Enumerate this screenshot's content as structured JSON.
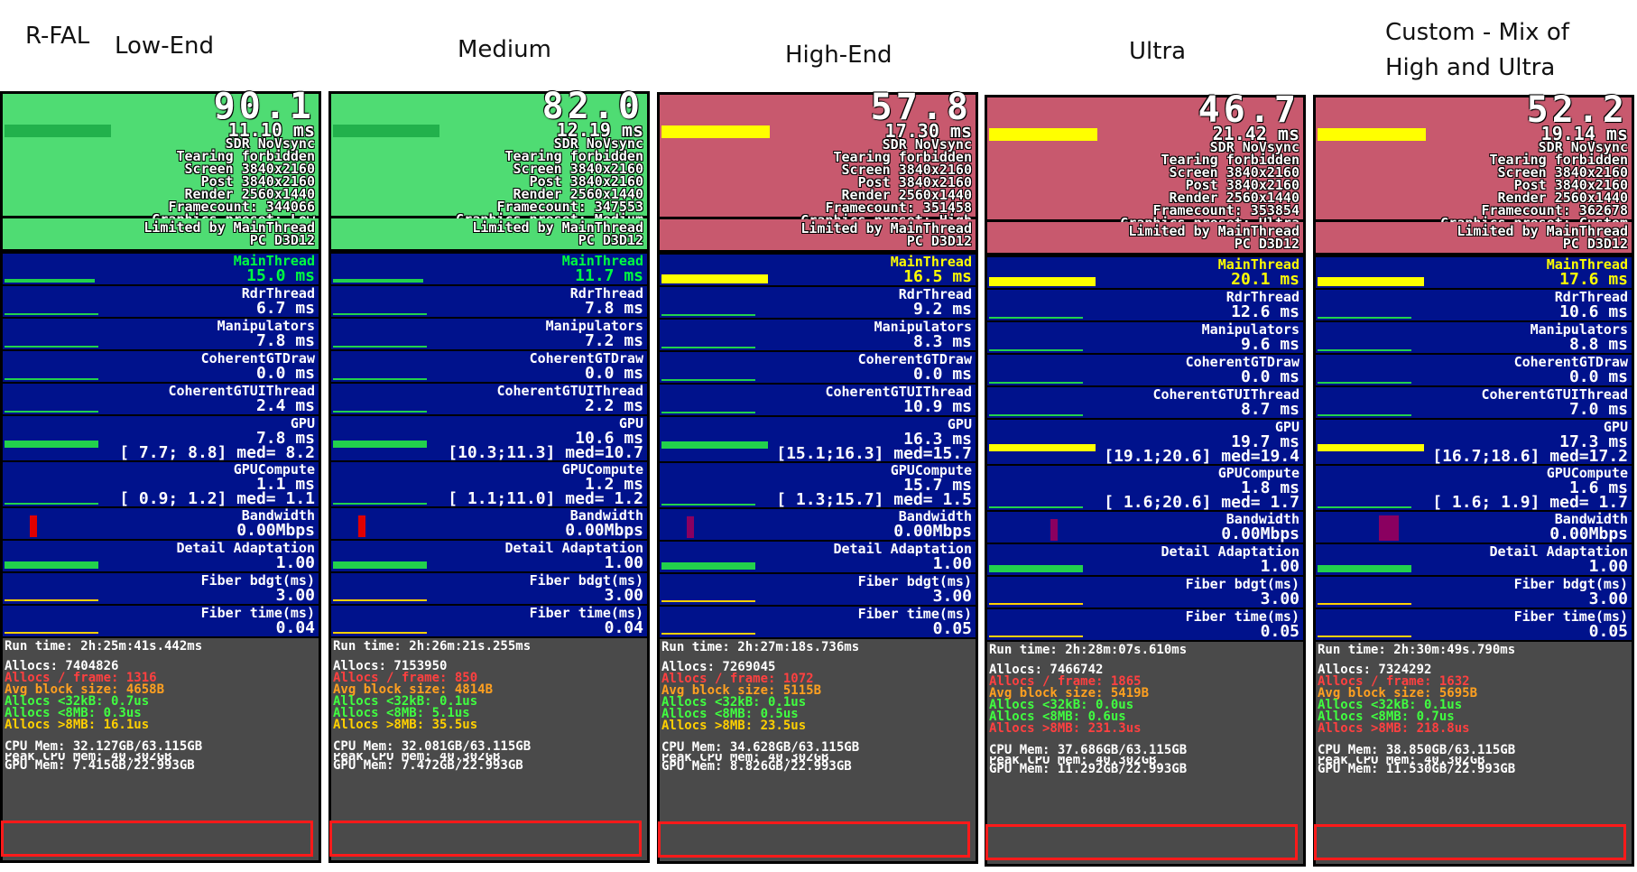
{
  "headers": {
    "rfal": "R-FAL",
    "c0": "Low-End",
    "c1": "Medium",
    "c2": "High-End",
    "c3": "Ultra",
    "c4_line1": "Custom - Mix of",
    "c4_line2": "High and Ultra"
  },
  "colors": {
    "green_top": "#4fdc73",
    "red_top": "#c8596e",
    "panel_blue": "#00128c",
    "mem_gray": "#4a4a4a",
    "highlight_red": "#ff1a1a"
  },
  "columns": [
    {
      "fps": "90.1",
      "ms": "11.10 ms",
      "sync": "SDR NoVsync",
      "tearing": "Tearing forbidden",
      "screen": "Screen 3840x2160",
      "post": "Post 3840x2160",
      "render": "Render 2560x1440",
      "framecount": "Framecount: 344066",
      "preset": "Graphics preset: Low",
      "limited": "Limited by MainThread",
      "pc": "PC D3D12",
      "main_label": "MainThread",
      "main_val": "15.0 ms",
      "rdr_label": "RdrThread",
      "rdr_val": "6.7 ms",
      "manip_label": "Manipulators",
      "manip_val": "7.8 ms",
      "cgtdraw_label": "CoherentGTDraw",
      "cgtdraw_val": "0.0 ms",
      "cgtui_label": "CoherentGTUIThread",
      "cgtui_val": "2.4 ms",
      "gpu_label": "GPU",
      "gpu_val": "7.8 ms",
      "gpu_range": "[ 7.7; 8.8] med= 8.2",
      "gpuc_label": "GPUCompute",
      "gpuc_val": "1.1 ms",
      "gpuc_range": "[ 0.9; 1.2] med= 1.1",
      "bw_label": "Bandwidth",
      "bw_val": "0.00Mbps",
      "da_label": "Detail Adaptation",
      "da_val": "1.00",
      "fb_label": "Fiber bdgt(ms)",
      "fb_val": "3.00",
      "ft_label": "Fiber time(ms)",
      "ft_val": "0.04",
      "runtime": "Run time: 2h:25m:41s.442ms",
      "allocs": "Allocs: 7404826",
      "allocs_frame": "Allocs / frame: 1316",
      "avg_block": "Avg block size: 4658B",
      "allocs_32k": "Allocs <32kB: 0.7us",
      "allocs_8mb": "Allocs <8MB: 0.3us",
      "allocs_gt8mb": "Allocs >8MB: 16.1us",
      "cpu_mem": "CPU Mem: 32.127GB/63.115GB",
      "peak_cpu": "Peak CPU Mem: 40.302GB",
      "gpu_mem": "GPU Mem: 7.415GB/22.993GB"
    },
    {
      "fps": "82.0",
      "ms": "12.19 ms",
      "sync": "SDR NoVsync",
      "tearing": "Tearing forbidden",
      "screen": "Screen 3840x2160",
      "post": "Post 3840x2160",
      "render": "Render 2560x1440",
      "framecount": "Framecount: 347553",
      "preset": "Graphics preset: Medium",
      "limited": "Limited by MainThread",
      "pc": "PC D3D12",
      "main_label": "MainThread",
      "main_val": "11.7 ms",
      "rdr_label": "RdrThread",
      "rdr_val": "7.8 ms",
      "manip_label": "Manipulators",
      "manip_val": "7.2 ms",
      "cgtdraw_label": "CoherentGTDraw",
      "cgtdraw_val": "0.0 ms",
      "cgtui_label": "CoherentGTUIThread",
      "cgtui_val": "2.2 ms",
      "gpu_label": "GPU",
      "gpu_val": "10.6 ms",
      "gpu_range": "[10.3;11.3] med=10.7",
      "gpuc_label": "GPUCompute",
      "gpuc_val": "1.2 ms",
      "gpuc_range": "[ 1.1;11.0] med= 1.2",
      "bw_label": "Bandwidth",
      "bw_val": "0.00Mbps",
      "da_label": "Detail Adaptation",
      "da_val": "1.00",
      "fb_label": "Fiber bdgt(ms)",
      "fb_val": "3.00",
      "ft_label": "Fiber time(ms)",
      "ft_val": "0.04",
      "runtime": "Run time: 2h:26m:21s.255ms",
      "allocs": "Allocs: 7153950",
      "allocs_frame": "Allocs / frame: 850",
      "avg_block": "Avg block size: 4814B",
      "allocs_32k": "Allocs <32kB: 0.1us",
      "allocs_8mb": "Allocs <8MB: 5.1us",
      "allocs_gt8mb": "Allocs >8MB: 35.5us",
      "cpu_mem": "CPU Mem: 32.081GB/63.115GB",
      "peak_cpu": "Peak CPU Mem: 40.302GB",
      "gpu_mem": "GPU Mem: 7.472GB/22.993GB"
    },
    {
      "fps": "57.8",
      "ms": "17.30 ms",
      "sync": "SDR NoVsync",
      "tearing": "Tearing forbidden",
      "screen": "Screen 3840x2160",
      "post": "Post 3840x2160",
      "render": "Render 2560x1440",
      "framecount": "Framecount: 351458",
      "preset": "Graphics preset: High",
      "limited": "Limited by MainThread",
      "pc": "PC D3D12",
      "main_label": "MainThread",
      "main_val": "16.5 ms",
      "rdr_label": "RdrThread",
      "rdr_val": "9.2 ms",
      "manip_label": "Manipulators",
      "manip_val": "8.3 ms",
      "cgtdraw_label": "CoherentGTDraw",
      "cgtdraw_val": "0.0 ms",
      "cgtui_label": "CoherentGTUIThread",
      "cgtui_val": "10.9 ms",
      "gpu_label": "GPU",
      "gpu_val": "16.3 ms",
      "gpu_range": "[15.1;16.3] med=15.7",
      "gpuc_label": "GPUCompute",
      "gpuc_val": "15.7 ms",
      "gpuc_range": "[ 1.3;15.7] med= 1.5",
      "bw_label": "Bandwidth",
      "bw_val": "0.00Mbps",
      "da_label": "Detail Adaptation",
      "da_val": "1.00",
      "fb_label": "Fiber bdgt(ms)",
      "fb_val": "3.00",
      "ft_label": "Fiber time(ms)",
      "ft_val": "0.05",
      "runtime": "Run time: 2h:27m:18s.736ms",
      "allocs": "Allocs: 7269045",
      "allocs_frame": "Allocs / frame: 1072",
      "avg_block": "Avg block size: 5115B",
      "allocs_32k": "Allocs <32kB: 0.1us",
      "allocs_8mb": "Allocs <8MB: 0.5us",
      "allocs_gt8mb": "Allocs >8MB: 23.5us",
      "cpu_mem": "CPU Mem: 34.628GB/63.115GB",
      "peak_cpu": "Peak CPU Mem: 40.302GB",
      "gpu_mem": "GPU Mem: 8.826GB/22.993GB"
    },
    {
      "fps": "46.7",
      "ms": "21.42 ms",
      "sync": "SDR NoVsync",
      "tearing": "Tearing forbidden",
      "screen": "Screen 3840x2160",
      "post": "Post 3840x2160",
      "render": "Render 2560x1440",
      "framecount": "Framecount: 353854",
      "preset": "Graphics preset: Ultra",
      "limited": "Limited by MainThread",
      "pc": "PC D3D12",
      "main_label": "MainThread",
      "main_val": "20.1 ms",
      "rdr_label": "RdrThread",
      "rdr_val": "12.6 ms",
      "manip_label": "Manipulators",
      "manip_val": "9.6 ms",
      "cgtdraw_label": "CoherentGTDraw",
      "cgtdraw_val": "0.0 ms",
      "cgtui_label": "CoherentGTUIThread",
      "cgtui_val": "8.7 ms",
      "gpu_label": "GPU",
      "gpu_val": "19.7 ms",
      "gpu_range": "[19.1;20.6] med=19.4",
      "gpuc_label": "GPUCompute",
      "gpuc_val": "1.8 ms",
      "gpuc_range": "[ 1.6;20.6] med= 1.7",
      "bw_label": "Bandwidth",
      "bw_val": "0.00Mbps",
      "da_label": "Detail Adaptation",
      "da_val": "1.00",
      "fb_label": "Fiber bdgt(ms)",
      "fb_val": "3.00",
      "ft_label": "Fiber time(ms)",
      "ft_val": "0.05",
      "runtime": "Run time: 2h:28m:07s.610ms",
      "allocs": "Allocs: 7466742",
      "allocs_frame": "Allocs / frame: 1865",
      "avg_block": "Avg block size: 5419B",
      "allocs_32k": "Allocs <32kB: 0.0us",
      "allocs_8mb": "Allocs <8MB: 0.6us",
      "allocs_gt8mb": "Allocs >8MB: 231.3us",
      "cpu_mem": "CPU Mem: 37.686GB/63.115GB",
      "peak_cpu": "Peak CPU Mem: 40.302GB",
      "gpu_mem": "GPU Mem: 11.292GB/22.993GB"
    },
    {
      "fps": "52.2",
      "ms": "19.14 ms",
      "sync": "SDR NoVsync",
      "tearing": "Tearing forbidden",
      "screen": "Screen 3840x2160",
      "post": "Post 3840x2160",
      "render": "Render 2560x1440",
      "framecount": "Framecount: 362678",
      "preset": "Graphics preset: Custom",
      "limited": "Limited by MainThread",
      "pc": "PC D3D12",
      "main_label": "MainThread",
      "main_val": "17.6 ms",
      "rdr_label": "RdrThread",
      "rdr_val": "10.6 ms",
      "manip_label": "Manipulators",
      "manip_val": "8.8 ms",
      "cgtdraw_label": "CoherentGTDraw",
      "cgtdraw_val": "0.0 ms",
      "cgtui_label": "CoherentGTUIThread",
      "cgtui_val": "7.0 ms",
      "gpu_label": "GPU",
      "gpu_val": "17.3 ms",
      "gpu_range": "[16.7;18.6] med=17.2",
      "gpuc_label": "GPUCompute",
      "gpuc_val": "1.6 ms",
      "gpuc_range": "[ 1.6; 1.9] med= 1.7",
      "bw_label": "Bandwidth",
      "bw_val": "0.00Mbps",
      "da_label": "Detail Adaptation",
      "da_val": "1.00",
      "fb_label": "Fiber bdgt(ms)",
      "fb_val": "3.00",
      "ft_label": "Fiber time(ms)",
      "ft_val": "0.05",
      "runtime": "Run time: 2h:30m:49s.790ms",
      "allocs": "Allocs: 7324292",
      "allocs_frame": "Allocs / frame: 1632",
      "avg_block": "Avg block size: 5695B",
      "allocs_32k": "Allocs <32kB: 0.1us",
      "allocs_8mb": "Allocs <8MB: 0.7us",
      "allocs_gt8mb": "Allocs >8MB: 218.8us",
      "cpu_mem": "CPU Mem: 38.850GB/63.115GB",
      "peak_cpu": "Peak CPU Mem: 40.302GB",
      "gpu_mem": "GPU Mem: 11.530GB/22.993GB"
    }
  ]
}
